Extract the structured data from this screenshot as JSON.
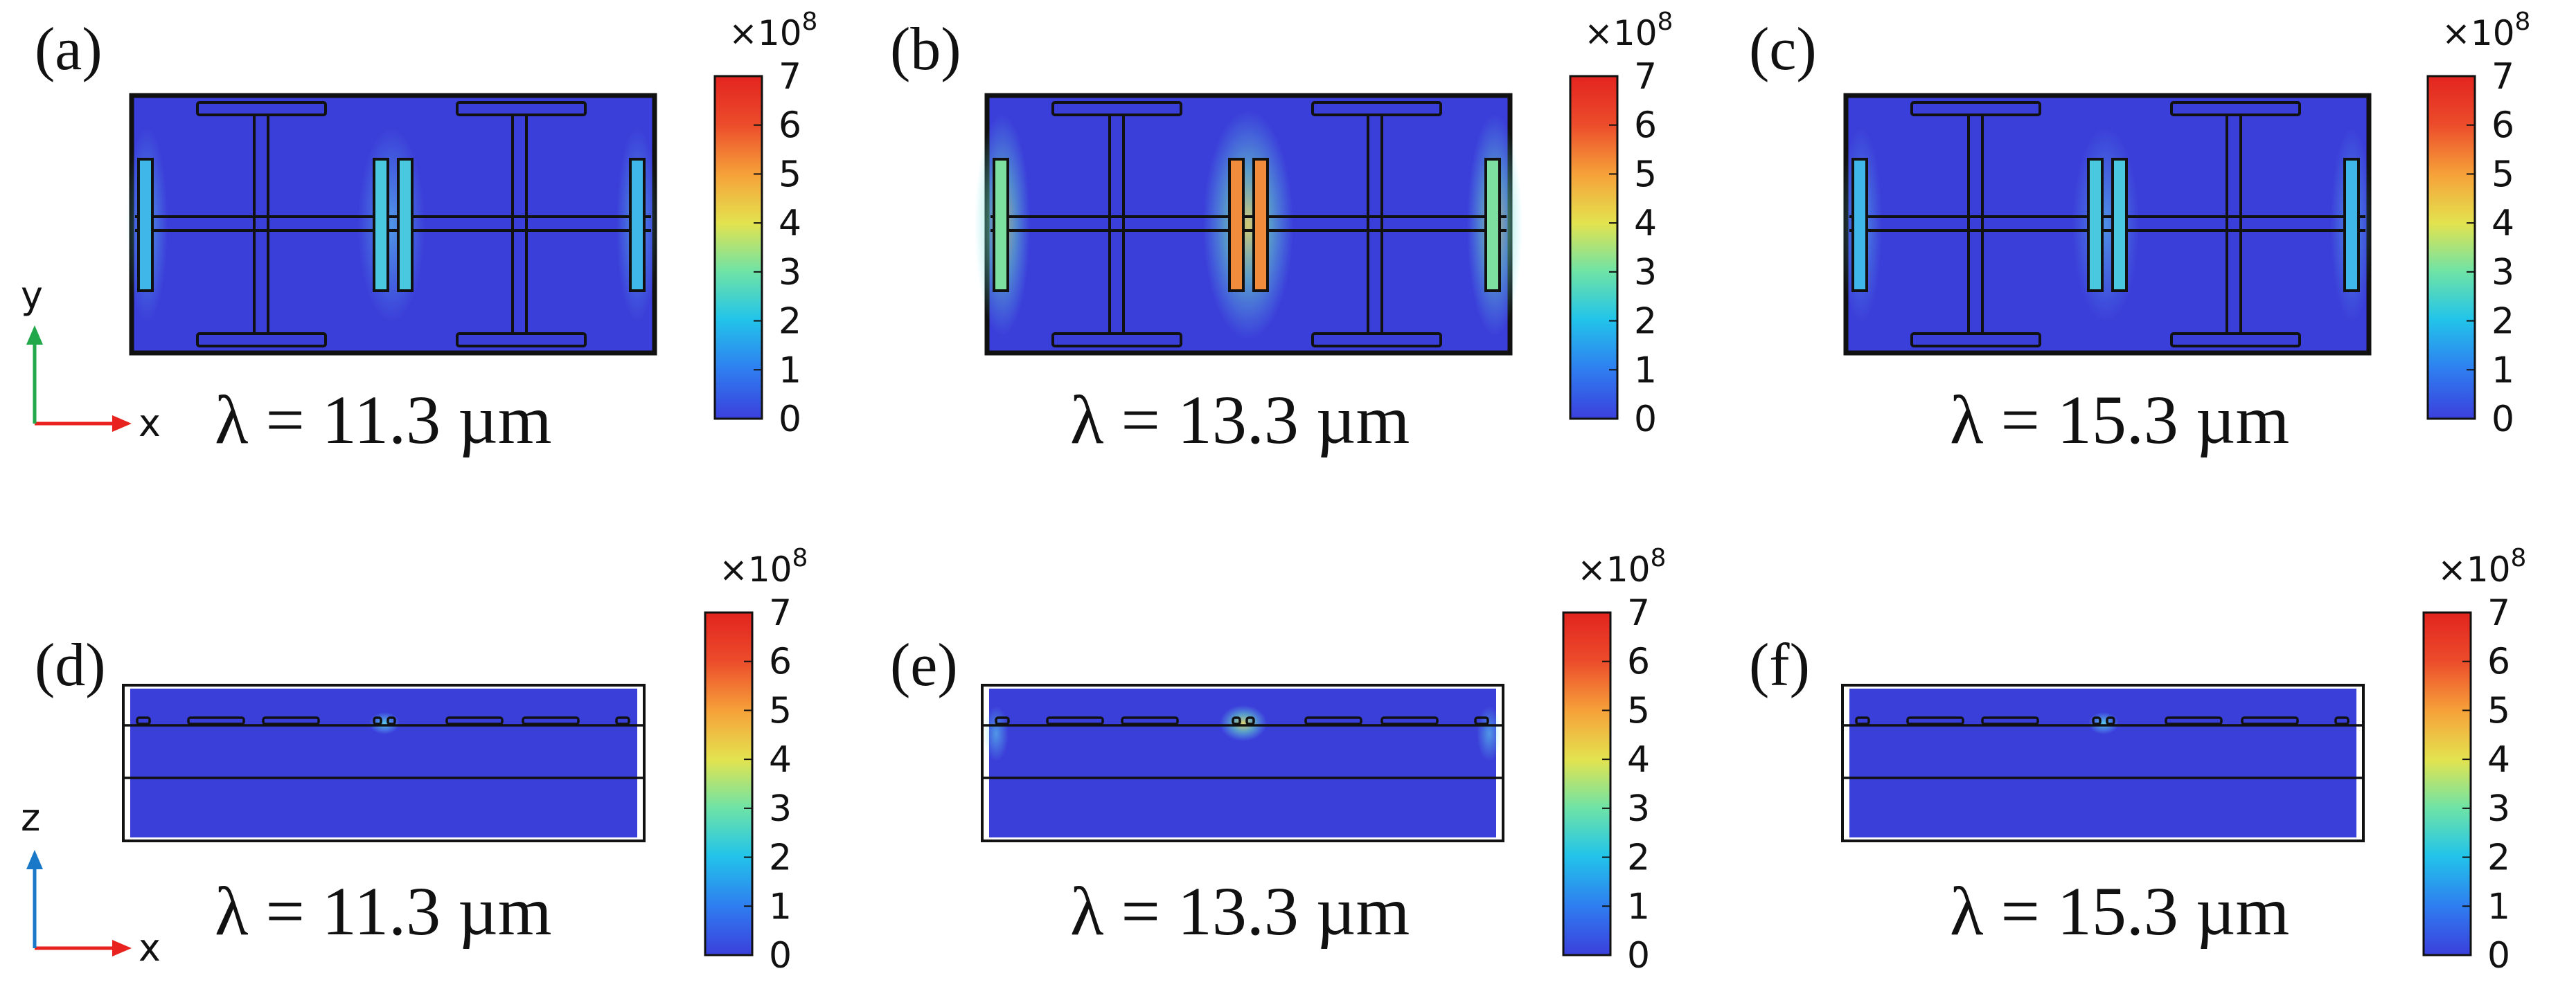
{
  "figure": {
    "panels": [
      {
        "id": "a",
        "label": "(a)",
        "view": "xy",
        "caption": "λ = 11.3 µm",
        "hot_level": 0.35
      },
      {
        "id": "b",
        "label": "(b)",
        "view": "xy",
        "caption": "λ = 13.3 µm",
        "hot_level": 0.78
      },
      {
        "id": "c",
        "label": "(c)",
        "view": "xy",
        "caption": "λ = 15.3 µm",
        "hot_level": 0.33
      },
      {
        "id": "d",
        "label": "(d)",
        "view": "xz",
        "caption": "λ = 11.3 µm",
        "hot_level": 0.3
      },
      {
        "id": "e",
        "label": "(e)",
        "view": "xz",
        "caption": "λ = 13.3 µm",
        "hot_level": 0.7
      },
      {
        "id": "f",
        "label": "(f)",
        "view": "xz",
        "caption": "λ = 15.3 µm",
        "hot_level": 0.32
      }
    ],
    "colorbar": {
      "multiplier": "×10",
      "exponent": "8",
      "ticks": [
        "0",
        "1",
        "2",
        "3",
        "4",
        "5",
        "6",
        "7"
      ],
      "stops": [
        "#3b3fdc",
        "#2f7cf0",
        "#22c4ea",
        "#6fe3a6",
        "#e3e34f",
        "#f6a33a",
        "#ec4b2b",
        "#e2241f"
      ]
    },
    "axes_top": {
      "horizontal": "x",
      "vertical": "y",
      "h_color": "#e8231f",
      "v_color": "#20a84a"
    },
    "axes_bottom": {
      "horizontal": "x",
      "vertical": "z",
      "h_color": "#e8231f",
      "v_color": "#1a78c8"
    },
    "field_background": "#3b3fd9"
  }
}
